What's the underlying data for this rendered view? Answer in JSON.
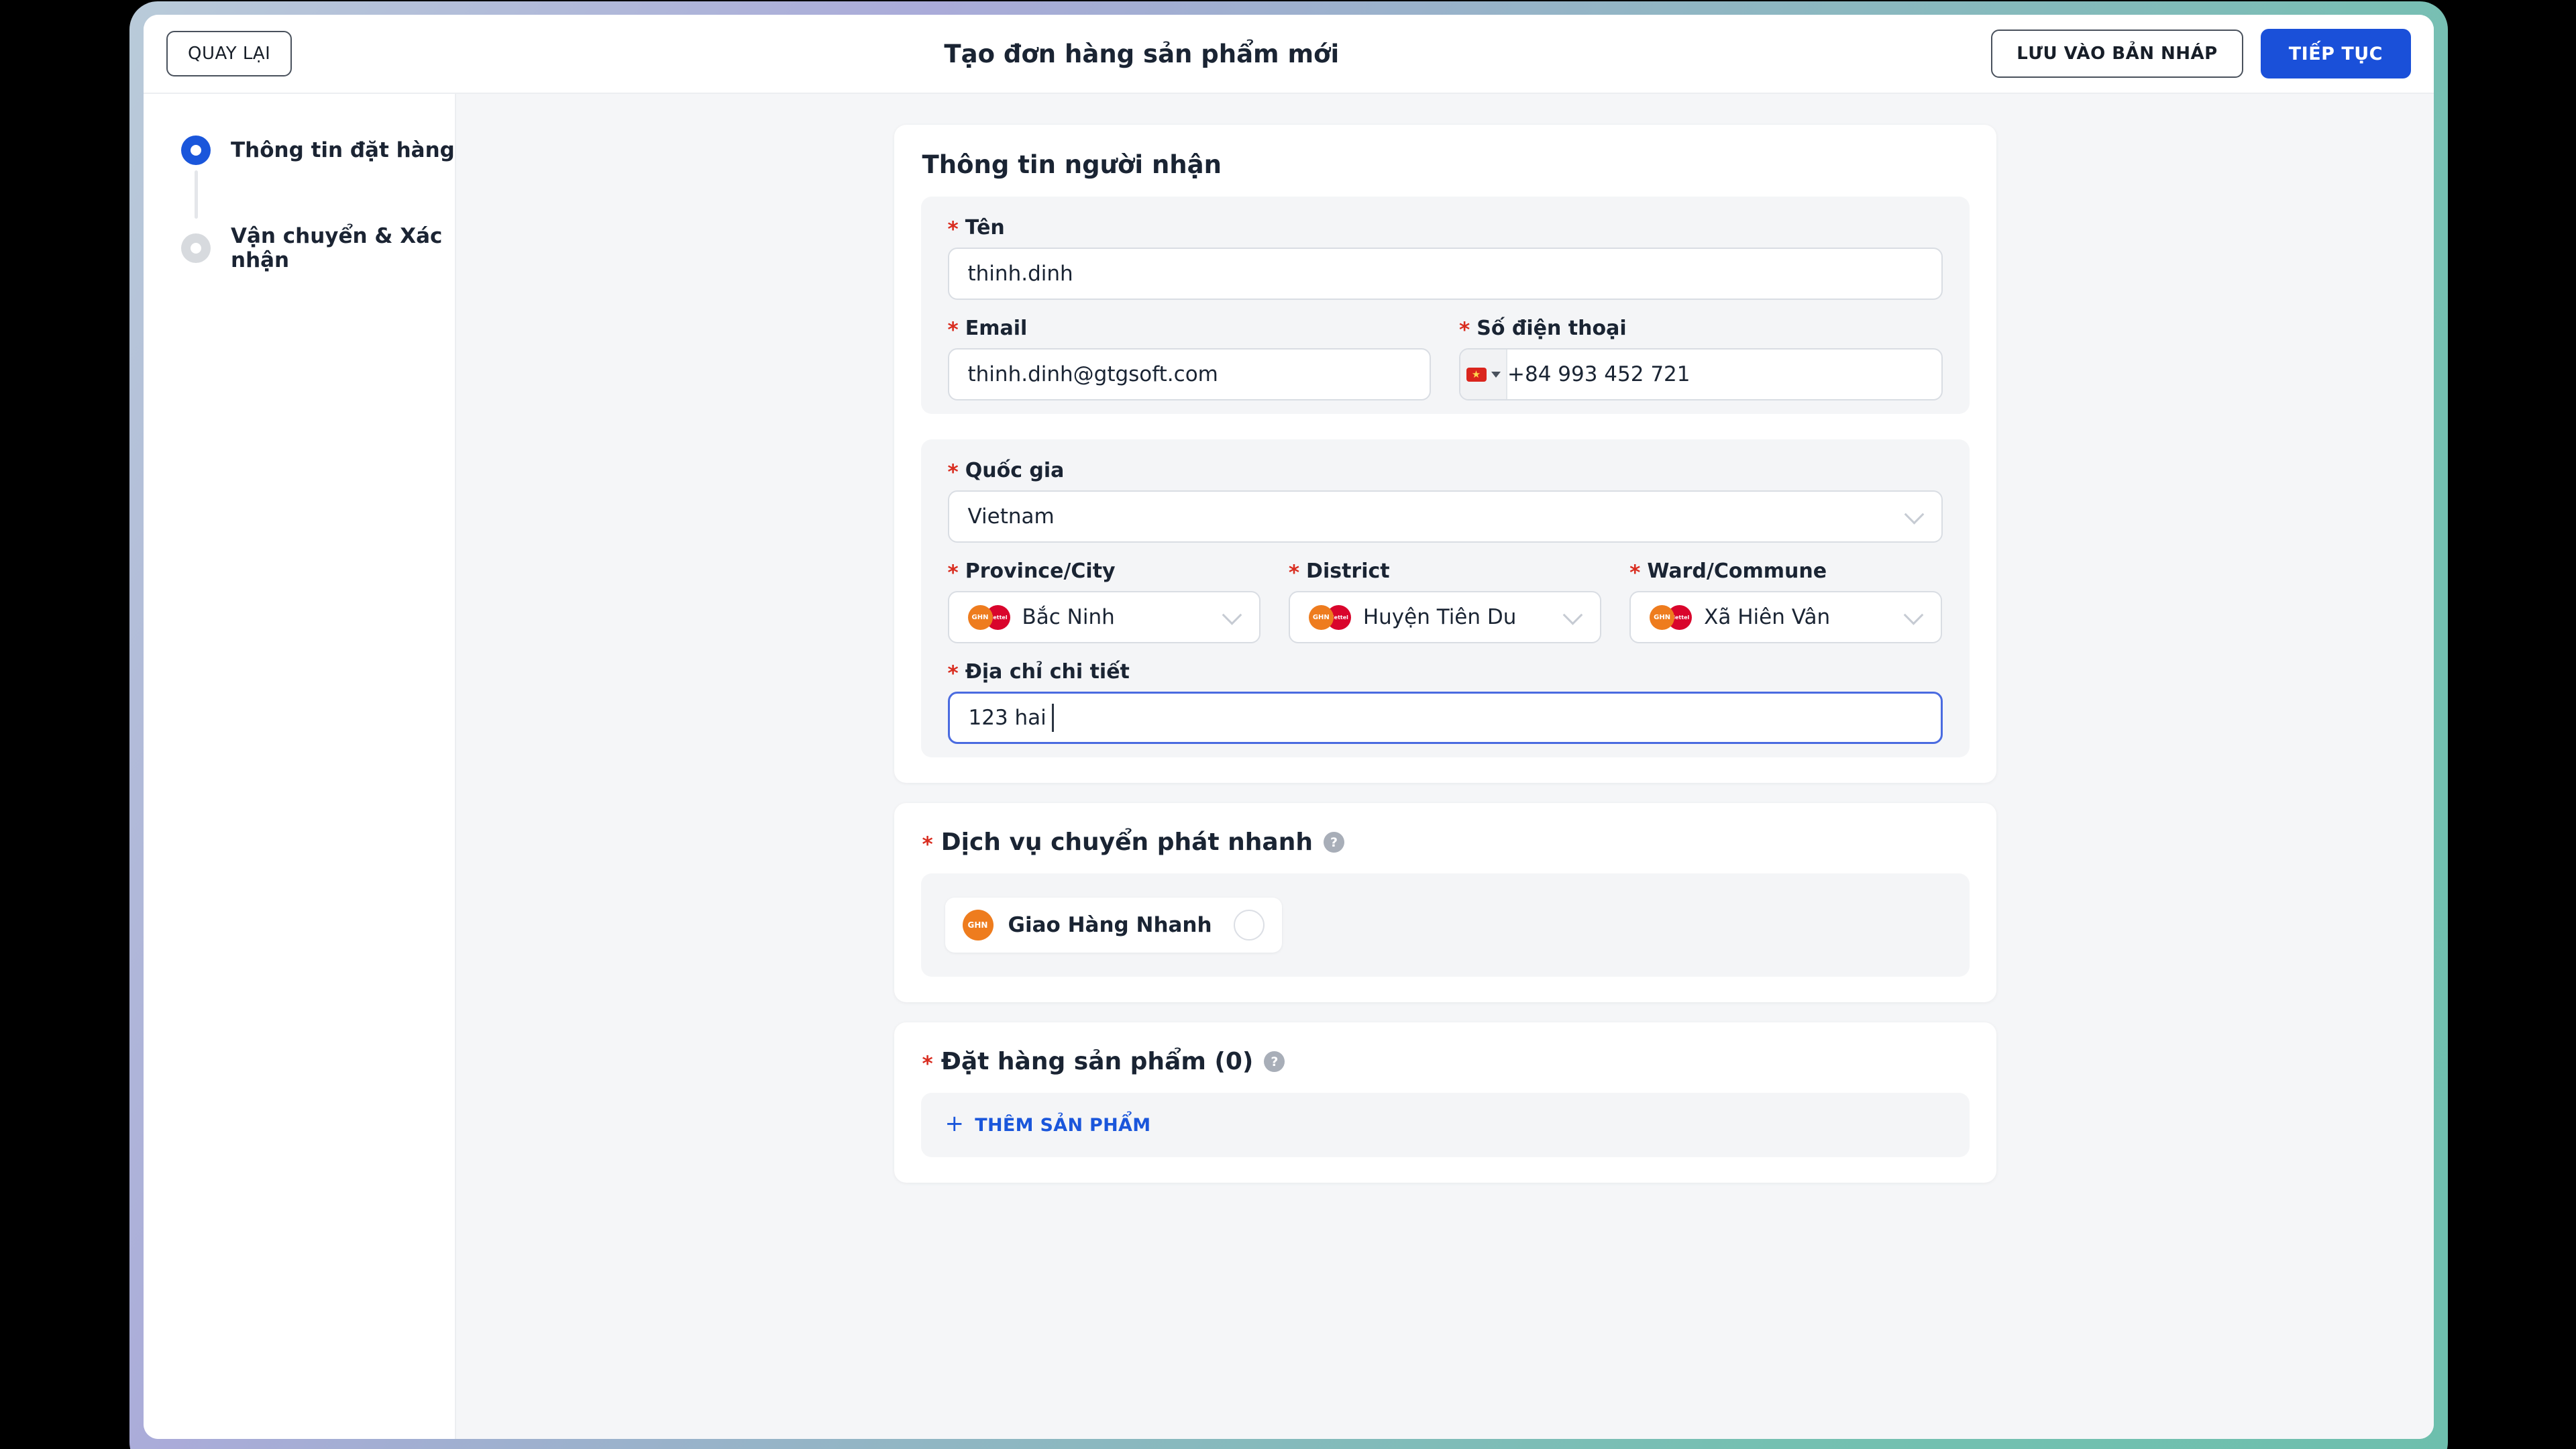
{
  "header": {
    "back_label": "QUAY LẠI",
    "title": "Tạo đơn hàng sản phẩm mới",
    "save_draft_label": "LƯU VÀO BẢN NHÁP",
    "continue_label": "TIẾP TỤC"
  },
  "steps": [
    {
      "label": "Thông tin đặt hàng",
      "state": "active"
    },
    {
      "label": "Vận chuyển & Xác nhận",
      "state": "upcoming"
    }
  ],
  "ui": {
    "required_mark": "*",
    "help_glyph": "?",
    "plus_glyph": "+",
    "flag_star": "★"
  },
  "recipient": {
    "section_title": "Thông tin người nhận",
    "name": {
      "label": "Tên",
      "value": "thinh.dinh"
    },
    "email": {
      "label": "Email",
      "value": "thinh.dinh@gtgsoft.com"
    },
    "phone": {
      "label": "Số điện thoại",
      "value": "+84 993 452 721"
    },
    "country": {
      "label": "Quốc gia",
      "value": "Vietnam"
    },
    "province": {
      "label": "Province/City",
      "value": "Bắc Ninh"
    },
    "district": {
      "label": "District",
      "value": "Huyện Tiên Du"
    },
    "ward": {
      "label": "Ward/Commune",
      "value": "Xã Hiên Vân"
    },
    "address": {
      "label": "Địa chỉ chi tiết",
      "value": "123 hai"
    }
  },
  "carriers": {
    "ghn_short": "GHN",
    "viettel_short": "viettel"
  },
  "shipping": {
    "section_title": "Dịch vụ chuyển phát nhanh",
    "option_label": "Giao Hàng Nhanh"
  },
  "products": {
    "section_title": "Đặt hàng sản phẩm (0)",
    "add_button_label": "THÊM SẢN PHẨM"
  },
  "colors": {
    "accent_blue": "#1a50d9",
    "step_blue": "#1a56db",
    "asterisk_red": "#d92d20",
    "ghn_orange": "#ee7c1e",
    "viettel_red": "#d9052c",
    "flag_red": "#da251d",
    "flag_star_yellow": "#ffd84d",
    "content_bg": "#f5f6f8"
  }
}
